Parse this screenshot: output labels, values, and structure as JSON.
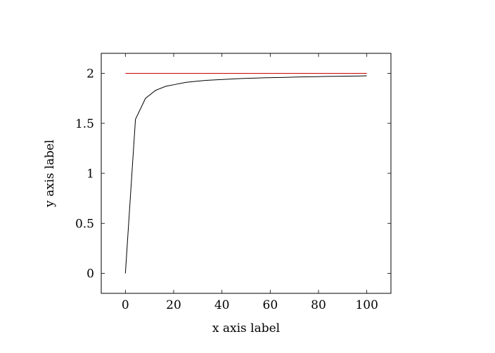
{
  "chart_data": {
    "type": "line",
    "xlabel": "x axis label",
    "ylabel": "y axis label",
    "xlim": [
      -10,
      110
    ],
    "ylim": [
      -0.2,
      2.2
    ],
    "xticks": [
      0,
      20,
      40,
      60,
      80,
      100
    ],
    "yticks": [
      0,
      0.5,
      1,
      1.5,
      2
    ],
    "xtick_labels": [
      "0",
      "20",
      "40",
      "60",
      "80",
      "100"
    ],
    "ytick_labels": [
      "0",
      "0.5",
      "1",
      "1.5",
      "2"
    ],
    "grid": false,
    "series": [
      {
        "color": "#000000",
        "x": [
          0,
          4.17,
          8.33,
          12.5,
          16.67,
          20.83,
          25,
          29.17,
          33.33,
          37.5,
          41.67,
          45.83,
          50,
          54.17,
          58.33,
          62.5,
          66.67,
          70.83,
          75,
          79.17,
          83.33,
          87.5,
          91.67,
          95.83,
          100
        ],
        "y": [
          0,
          1.54,
          1.75,
          1.83,
          1.87,
          1.89,
          1.91,
          1.92,
          1.93,
          1.935,
          1.94,
          1.946,
          1.95,
          1.953,
          1.956,
          1.958,
          1.96,
          1.963,
          1.965,
          1.967,
          1.969,
          1.97,
          1.972,
          1.973,
          1.975
        ]
      },
      {
        "color": "#cc0000",
        "x": [
          0,
          100
        ],
        "y": [
          2,
          2
        ]
      }
    ]
  }
}
